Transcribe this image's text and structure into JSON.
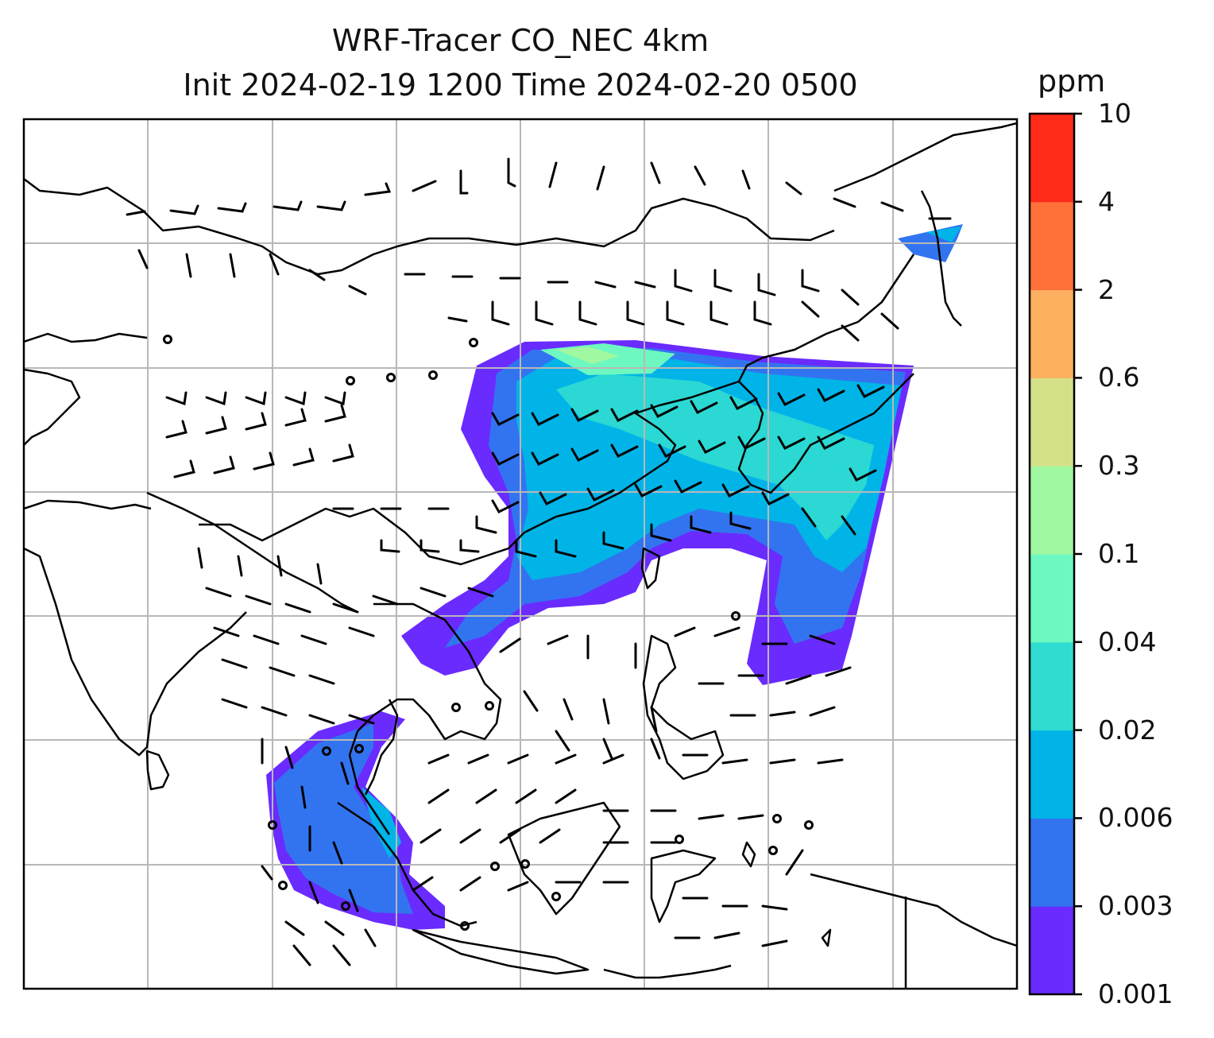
{
  "title_line1": "WRF-Tracer CO_NEC 4km",
  "title_line2": "Init 2024-02-19 1200 Time 2024-02-20 0500",
  "colorbar": {
    "unit": "ppm",
    "levels": [
      "0.001",
      "0.003",
      "0.006",
      "0.02",
      "0.04",
      "0.1",
      "0.3",
      "0.6",
      "2",
      "4",
      "10"
    ],
    "colors": [
      "#6a2bff",
      "#3274f0",
      "#00b4e8",
      "#30dcd0",
      "#6cf8c0",
      "#a0f8a0",
      "#d4e088",
      "#fdb060",
      "#ff7038",
      "#ff2a18"
    ]
  },
  "map": {
    "field": "CO_NEC tracer concentration",
    "gridlines": true,
    "wind_barbs": true,
    "coastlines": true
  }
}
